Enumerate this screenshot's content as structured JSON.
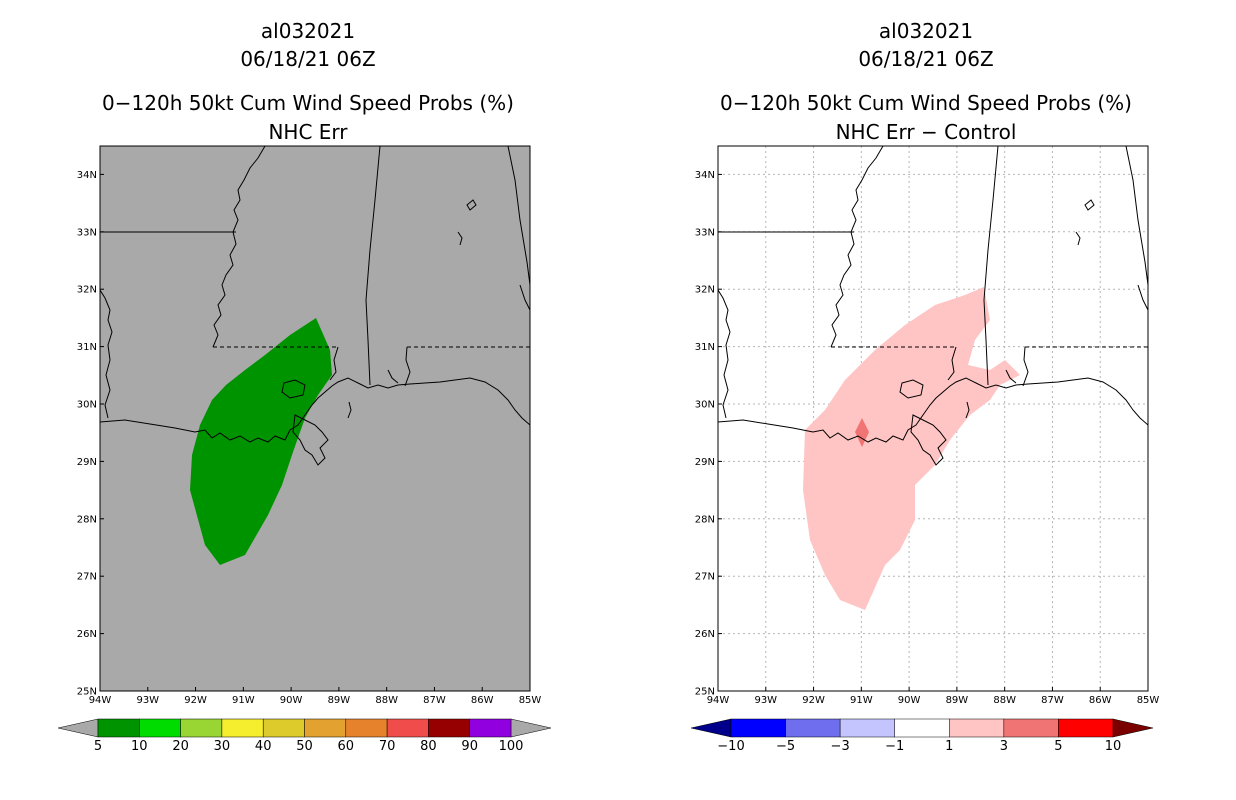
{
  "left_panel": {
    "storm_id": "al032021",
    "datetime": "06/18/21 06Z",
    "title": "0−120h 50kt Cum Wind Speed Probs (%)",
    "subtitle": "NHC Err",
    "background_color": "#a9a9a9",
    "fill_color": "#009300",
    "colorbar": {
      "labels": [
        "5",
        "10",
        "20",
        "30",
        "40",
        "50",
        "60",
        "70",
        "80",
        "90",
        "100"
      ],
      "colors": [
        "#009300",
        "#00dc00",
        "#99d633",
        "#f5ee2f",
        "#dccb2b",
        "#e3a22f",
        "#e6822c",
        "#f04c4c",
        "#970000",
        "#9100df"
      ],
      "end_color": "#a9a9a9"
    }
  },
  "right_panel": {
    "storm_id": "al032021",
    "datetime": "06/18/21 06Z",
    "title": "0−120h 50kt Cum Wind Speed Probs (%)",
    "subtitle": "NHC Err − Control",
    "background_color": "#ffffff",
    "fill_color": "#ffc4c4",
    "spot_color": "#f07474",
    "colorbar": {
      "labels": [
        "−10",
        "−5",
        "−3",
        "−1",
        "1",
        "3",
        "5",
        "10"
      ],
      "colors": [
        "#0000ff",
        "#6e6eee",
        "#c4c4ff",
        "#ffffff",
        "#ffc4c4",
        "#f07474",
        "#ff0000"
      ],
      "low_color": "#00008b",
      "high_color": "#7a0000"
    }
  },
  "axes": {
    "lat_labels": [
      "34N",
      "33N",
      "32N",
      "31N",
      "30N",
      "29N",
      "28N",
      "27N",
      "26N",
      "25N"
    ],
    "lon_labels": [
      "94W",
      "93W",
      "92W",
      "91W",
      "90W",
      "89W",
      "88W",
      "87W",
      "86W",
      "85W"
    ],
    "lon_range": [
      -94,
      -85
    ],
    "lat_range": [
      25,
      34.5
    ]
  }
}
